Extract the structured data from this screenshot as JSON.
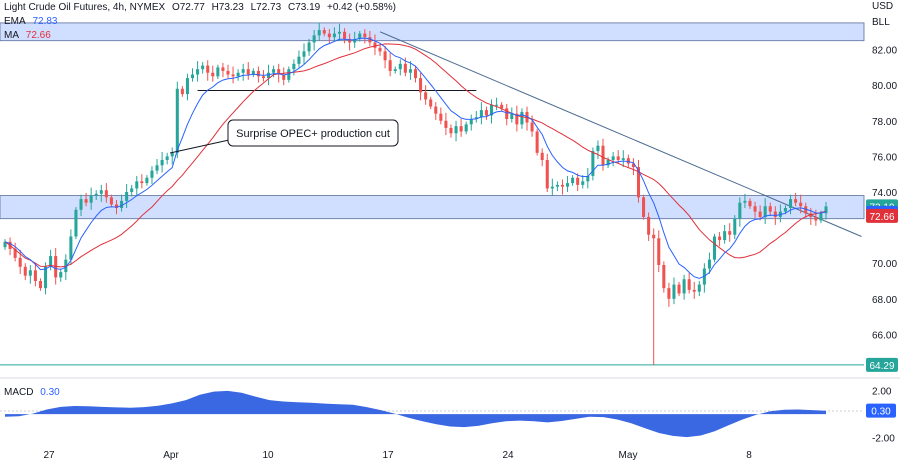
{
  "header": {
    "title": "Light Crude Oil Futures, 4h, NYMEX",
    "open": "O72.77",
    "high": "H73.23",
    "low": "L72.73",
    "close": "C73.19",
    "change": "+0.42 (+0.58%)",
    "ema_label": "EMA",
    "ema_value": "72.83",
    "ma_label": "MA",
    "ma_value": "72.66",
    "currency": "USD",
    "unit": "BLL"
  },
  "annotation": "Surprise OPEC+ production cut",
  "colors": {
    "up": "#26a69a",
    "down": "#ef5350",
    "ema": "#2962ff",
    "ma": "#e0303a",
    "zone": "#bcd0ff",
    "macd": "#2f5fe0"
  },
  "chart_data": [
    {
      "type": "candlestick",
      "yrange": [
        64,
        84
      ],
      "y_ticks": [
        "82.00",
        "80.00",
        "78.00",
        "76.00",
        "74.00",
        "70.00",
        "68.00",
        "66.00"
      ],
      "x_ticks": [
        "27",
        "Apr",
        "10",
        "17",
        "24",
        "May",
        "8"
      ],
      "price_labels": [
        {
          "value": "73.19",
          "y": 73.19,
          "color": "#26a69a"
        },
        {
          "value": "72.83",
          "y": 72.83,
          "color": "#2962ff"
        },
        {
          "value": "72.66",
          "y": 72.66,
          "color": "#e0303a"
        },
        {
          "value": "64.29",
          "y": 64.29,
          "color": "#26a69a"
        }
      ],
      "zones": [
        [
          82.5,
          83.5
        ],
        [
          72.5,
          73.8
        ]
      ],
      "horizontal_lines": [
        64.29
      ],
      "support_line": {
        "y": 79.7,
        "x_from": 38,
        "x_to": 93
      },
      "trendline": {
        "from": [
          74,
          83.0
        ],
        "to": [
          169,
          71.5
        ]
      },
      "closes": [
        71.2,
        70.8,
        70.3,
        69.8,
        69.3,
        69.6,
        69.0,
        68.6,
        69.8,
        70.4,
        69.2,
        69.5,
        70.2,
        71.5,
        73.0,
        73.6,
        73.4,
        73.8,
        73.9,
        74.1,
        73.7,
        73.3,
        73.1,
        73.5,
        74.0,
        74.2,
        74.6,
        74.5,
        74.8,
        75.2,
        75.5,
        75.8,
        76.0,
        76.2,
        79.8,
        79.5,
        80.4,
        80.6,
        80.9,
        81.1,
        80.7,
        80.5,
        81.0,
        80.8,
        80.6,
        80.5,
        80.7,
        80.9,
        80.6,
        80.8,
        80.5,
        80.4,
        80.7,
        80.9,
        80.6,
        80.3,
        80.9,
        81.2,
        81.6,
        81.9,
        82.4,
        82.8,
        83.1,
        82.9,
        82.7,
        82.9,
        83.0,
        82.6,
        82.4,
        82.6,
        82.9,
        82.7,
        82.4,
        82.1,
        81.9,
        81.4,
        80.8,
        80.9,
        81.2,
        80.7,
        80.9,
        80.4,
        79.6,
        79.2,
        78.8,
        78.4,
        78.0,
        77.6,
        77.3,
        77.7,
        77.4,
        77.8,
        78.1,
        78.2,
        78.6,
        78.3,
        78.9,
        78.9,
        78.7,
        78.1,
        78.4,
        77.8,
        78.5,
        77.9,
        77.4,
        76.2,
        75.8,
        74.2,
        74.3,
        74.4,
        74.3,
        74.5,
        74.8,
        74.4,
        74.6,
        74.9,
        76.3,
        76.6,
        75.5,
        75.8,
        76.0,
        75.8,
        75.9,
        75.6,
        75.4,
        73.7,
        72.6,
        71.6,
        71.4,
        69.9,
        68.6,
        68.0,
        68.8,
        68.3,
        69.1,
        68.5,
        68.4,
        68.8,
        69.7,
        70.2,
        71.5,
        71.3,
        71.8,
        71.6,
        72.5,
        73.4,
        73.5,
        73.2,
        72.9,
        72.6,
        73.2,
        72.9,
        72.6,
        72.9,
        73.1,
        73.6,
        73.4,
        73.2,
        72.8,
        72.6,
        72.4,
        72.8,
        73.19
      ]
    },
    {
      "type": "area",
      "label": "MACD",
      "value": "0.30",
      "yrange": [
        -2.2,
        2.4
      ],
      "y_ticks": [
        "2.00",
        "-2.00"
      ],
      "values": [
        -0.22,
        -0.18,
        0.05,
        0.4,
        0.62,
        0.7,
        0.68,
        0.62,
        0.58,
        0.55,
        0.6,
        0.72,
        0.92,
        1.2,
        1.65,
        1.92,
        1.98,
        1.82,
        1.5,
        1.2,
        1.08,
        1.02,
        0.98,
        0.9,
        0.85,
        0.8,
        0.6,
        0.35,
        0.05,
        -0.3,
        -0.6,
        -0.85,
        -1.05,
        -1.1,
        -1.0,
        -0.78,
        -0.6,
        -0.55,
        -0.6,
        -0.7,
        -0.58,
        -0.4,
        -0.22,
        -0.25,
        -0.45,
        -0.78,
        -1.2,
        -1.6,
        -1.85,
        -1.95,
        -1.82,
        -1.45,
        -0.95,
        -0.45,
        -0.05,
        0.25,
        0.38,
        0.4,
        0.35,
        0.3
      ]
    }
  ]
}
